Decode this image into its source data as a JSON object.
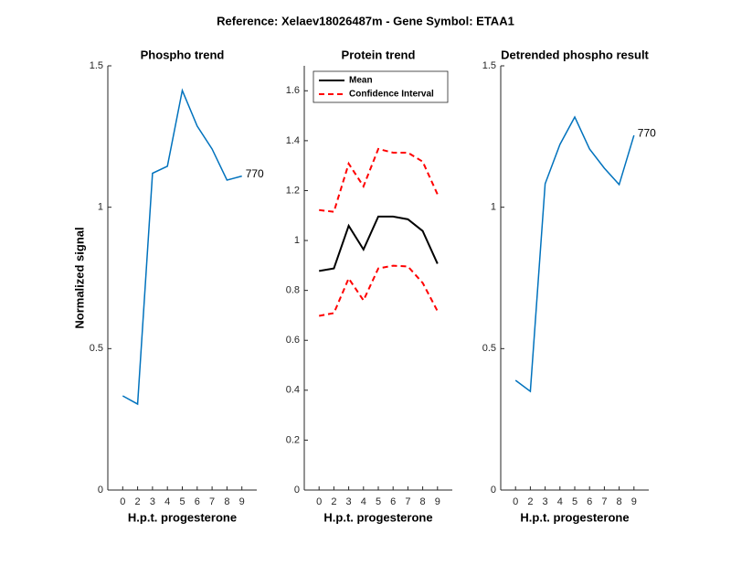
{
  "title": "Reference:  Xelaev18026487m - Gene Symbol:  ETAA1",
  "chart_data": [
    {
      "type": "line",
      "title": "Phospho trend",
      "xlabel": "H.p.t. progesterone",
      "ylabel": "Normalized signal",
      "categories": [
        "0",
        "2",
        "3",
        "4",
        "5",
        "6",
        "7",
        "8",
        "9"
      ],
      "series": [
        {
          "name": "Phospho",
          "color": "#0072bd",
          "values": [
            0.333,
            0.304,
            1.12,
            1.145,
            1.413,
            1.287,
            1.206,
            1.096,
            1.11
          ]
        }
      ],
      "annotation": "770",
      "ylim": [
        0,
        1.5
      ],
      "yticks": [
        0,
        0.5,
        1,
        1.5
      ]
    },
    {
      "type": "band",
      "title": "Protein trend",
      "xlabel": "H.p.t. progesterone",
      "categories": [
        "0",
        "2",
        "3",
        "4",
        "5",
        "6",
        "7",
        "8",
        "9"
      ],
      "series": [
        {
          "name": "Mean",
          "color": "#000000",
          "values": [
            0.878,
            0.888,
            1.059,
            0.964,
            1.096,
            1.096,
            1.085,
            1.038,
            0.907
          ]
        },
        {
          "name": "Confidence Interval",
          "color": "#ff0000",
          "dashed": true,
          "upper": [
            1.122,
            1.115,
            1.308,
            1.217,
            1.367,
            1.352,
            1.352,
            1.316,
            1.185
          ],
          "lower": [
            0.698,
            0.709,
            0.848,
            0.76,
            0.888,
            0.899,
            0.896,
            0.83,
            0.717
          ]
        }
      ],
      "legend": "top-left",
      "ylim": [
        0,
        1.7
      ],
      "yticks": [
        0,
        0.2,
        0.4,
        0.6,
        0.8,
        1,
        1.2,
        1.4,
        1.6
      ]
    },
    {
      "type": "line",
      "title": "Detrended phospho result",
      "xlabel": "H.p.t. progesterone",
      "categories": [
        "0",
        "2",
        "3",
        "4",
        "5",
        "6",
        "7",
        "8",
        "9"
      ],
      "series": [
        {
          "name": "Detrended",
          "color": "#0072bd",
          "values": [
            0.388,
            0.349,
            1.083,
            1.222,
            1.319,
            1.206,
            1.138,
            1.08,
            1.254
          ]
        }
      ],
      "annotation": "770",
      "ylim": [
        0,
        1.5
      ],
      "yticks": [
        0,
        0.5,
        1,
        1.5
      ]
    }
  ]
}
